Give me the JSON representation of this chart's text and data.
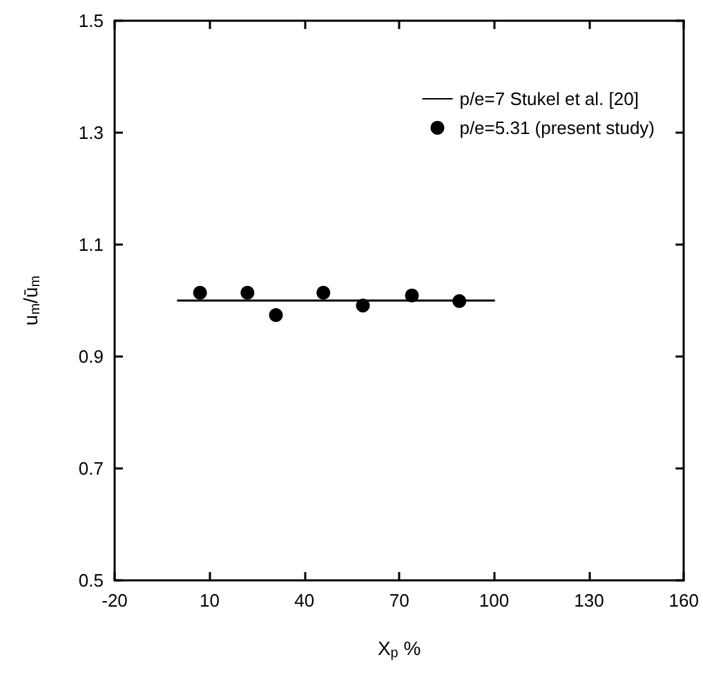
{
  "chart_data": {
    "type": "scatter",
    "xlabel": "X$_{p}$ %",
    "ylabel": "u$_{m}$/ū$_{m}$",
    "xlim": [
      -20,
      160
    ],
    "xticks": [
      -20,
      10,
      40,
      70,
      100,
      130,
      160
    ],
    "ylim": [
      0.5,
      1.5
    ],
    "yticks": [
      0.5,
      0.7,
      0.9,
      1.1,
      1.3,
      1.5
    ],
    "grid": false,
    "legend": "top right",
    "series": [
      {
        "name": "p/e=7 Stukel et al. [20]",
        "type": "line",
        "color": "#000000",
        "x": [
          0,
          100
        ],
        "values": [
          1.0,
          1.0
        ],
        "marker": "none",
        "line_style": "solid"
      },
      {
        "name": "p/e=5.31 (present study)",
        "color": "#000000",
        "x": [
          7,
          22,
          31,
          46,
          58.5,
          74,
          89
        ],
        "values": [
          1.014,
          1.014,
          0.974,
          1.014,
          0.991,
          1.009,
          0.999
        ],
        "marker": "circle"
      }
    ]
  }
}
